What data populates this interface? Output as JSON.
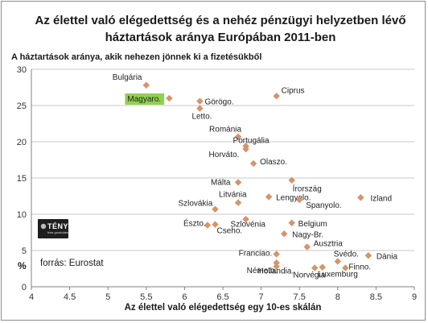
{
  "chart_data": {
    "type": "scatter",
    "title_line1": "Az élettel való elégedettség és a nehéz pénzügyi helyzetben lévő",
    "title_line2": "háztartások aránya Európában 2011-ben",
    "ylabel": "A háztartások aránya, akik nehezen jönnek ki a fizetésükből",
    "ylabel_unit": "%",
    "xlabel": "Az élettel való elégedettség egy 10-es skálán",
    "source": "forrás: Eurostat",
    "logo": {
      "main": "TÉNYTÁR",
      "sub": "friss gondolatok"
    },
    "xlim": [
      4,
      9
    ],
    "ylim": [
      0,
      30
    ],
    "xticks": [
      "4",
      "4.5",
      "5",
      "5.5",
      "6",
      "6.5",
      "7",
      "7.5",
      "8",
      "8.5",
      "9"
    ],
    "yticks": [
      "0",
      "5",
      "10",
      "15",
      "20",
      "25",
      "30"
    ],
    "grid": "horizontal",
    "marker_color": "#d4956a",
    "highlight_color": "#92d050",
    "points": [
      {
        "label": "Bulgária",
        "x": 5.5,
        "y": 27.8
      },
      {
        "label": "Magyaro.",
        "x": 5.8,
        "y": 26.0,
        "highlight": true
      },
      {
        "label": "Görögo.",
        "x": 6.2,
        "y": 25.6
      },
      {
        "label": "Letto.",
        "x": 6.2,
        "y": 24.6
      },
      {
        "label": "Ciprus",
        "x": 7.2,
        "y": 26.3
      },
      {
        "label": "Románia",
        "x": 6.7,
        "y": 20.7
      },
      {
        "label": "Portugália",
        "x": 6.8,
        "y": 19.4
      },
      {
        "label": "Horváto.",
        "x": 6.8,
        "y": 19.0
      },
      {
        "label": "Olaszo.",
        "x": 6.9,
        "y": 17.0
      },
      {
        "label": "Málta",
        "x": 6.7,
        "y": 14.4
      },
      {
        "label": "Írország",
        "x": 7.4,
        "y": 14.7
      },
      {
        "label": "Litvánia",
        "x": 6.7,
        "y": 11.6
      },
      {
        "label": "Lengyelo.",
        "x": 7.1,
        "y": 12.4
      },
      {
        "label": "Spanyolo.",
        "x": 7.5,
        "y": 12.0
      },
      {
        "label": "Izland",
        "x": 8.3,
        "y": 12.3
      },
      {
        "label": "Szlovákia",
        "x": 6.4,
        "y": 10.7
      },
      {
        "label": "Észto.",
        "x": 6.3,
        "y": 8.5
      },
      {
        "label": "Cseho.",
        "x": 6.4,
        "y": 8.6
      },
      {
        "label": "Szlovénia",
        "x": 6.8,
        "y": 9.3
      },
      {
        "label": "Belgium",
        "x": 7.4,
        "y": 8.8
      },
      {
        "label": "Nagy-Br.",
        "x": 7.3,
        "y": 7.3
      },
      {
        "label": "Ausztria",
        "x": 7.6,
        "y": 5.5
      },
      {
        "label": "Franciao.",
        "x": 7.2,
        "y": 4.5
      },
      {
        "label": "Hollandia.",
        "x": 7.2,
        "y": 3.3
      },
      {
        "label": "Svédo.",
        "x": 8.0,
        "y": 3.5
      },
      {
        "label": "Dánia",
        "x": 8.4,
        "y": 4.3
      },
      {
        "label": "Németo.",
        "x": 7.2,
        "y": 2.8
      },
      {
        "label": "Norvégia",
        "x": 7.7,
        "y": 2.6
      },
      {
        "label": "Luxemburg",
        "x": 7.8,
        "y": 2.7
      },
      {
        "label": "Finno.",
        "x": 8.1,
        "y": 2.6
      }
    ]
  }
}
